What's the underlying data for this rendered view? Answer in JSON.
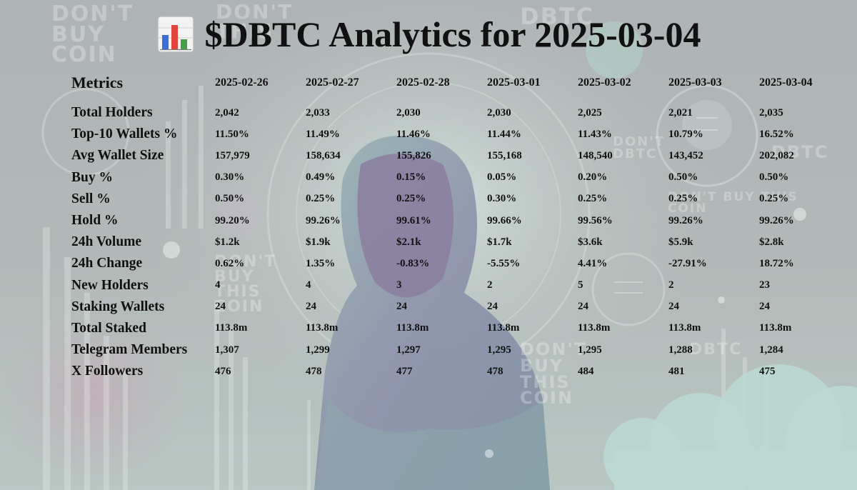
{
  "title": {
    "icon": "bar-chart-icon",
    "text": "$DBTC Analytics for 2025-03-04"
  },
  "background": {
    "watermarks": [
      "DON'T BUY COIN",
      "DON'T THIS",
      "DBTC",
      "DON'T DBTC",
      "DBTC",
      "DON'T BUY THIS COIN",
      "DON'T BUY THIS COIN",
      "DON'T BUY THIS COIN",
      "DBTC"
    ],
    "colors": {
      "base": "#a9b0b3",
      "glow": "#b9d6cf",
      "hood": "#8d8ea9"
    }
  },
  "table": {
    "header_label": "Metrics",
    "dates": [
      "2025-02-26",
      "2025-02-27",
      "2025-02-28",
      "2025-03-01",
      "2025-03-02",
      "2025-03-03",
      "2025-03-04"
    ],
    "rows": [
      {
        "label": "Total Holders",
        "values": [
          "2,042",
          "2,033",
          "2,030",
          "2,030",
          "2,025",
          "2,021",
          "2,035"
        ]
      },
      {
        "label": "Top-10 Wallets %",
        "values": [
          "11.50%",
          "11.49%",
          "11.46%",
          "11.44%",
          "11.43%",
          "10.79%",
          "16.52%"
        ]
      },
      {
        "label": "Avg Wallet Size",
        "values": [
          "157,979",
          "158,634",
          "155,826",
          "155,168",
          "148,540",
          "143,452",
          "202,082"
        ]
      },
      {
        "label": "Buy %",
        "values": [
          "0.30%",
          "0.49%",
          "0.15%",
          "0.05%",
          "0.20%",
          "0.50%",
          "0.50%"
        ]
      },
      {
        "label": "Sell %",
        "values": [
          "0.50%",
          "0.25%",
          "0.25%",
          "0.30%",
          "0.25%",
          "0.25%",
          "0.25%"
        ]
      },
      {
        "label": "Hold %",
        "values": [
          "99.20%",
          "99.26%",
          "99.61%",
          "99.66%",
          "99.56%",
          "99.26%",
          "99.26%"
        ]
      },
      {
        "label": "24h Volume",
        "values": [
          "$1.2k",
          "$1.9k",
          "$2.1k",
          "$1.7k",
          "$3.6k",
          "$5.9k",
          "$2.8k"
        ]
      },
      {
        "label": "24h Change",
        "values": [
          "0.62%",
          "1.35%",
          "-0.83%",
          "-5.55%",
          "4.41%",
          "-27.91%",
          "18.72%"
        ]
      },
      {
        "label": "New Holders",
        "values": [
          "4",
          "4",
          "3",
          "2",
          "5",
          "2",
          "23"
        ]
      },
      {
        "label": "Staking Wallets",
        "values": [
          "24",
          "24",
          "24",
          "24",
          "24",
          "24",
          "24"
        ]
      },
      {
        "label": "Total Staked",
        "values": [
          "113.8m",
          "113.8m",
          "113.8m",
          "113.8m",
          "113.8m",
          "113.8m",
          "113.8m"
        ]
      },
      {
        "label": "Telegram Members",
        "values": [
          "1,307",
          "1,299",
          "1,297",
          "1,295",
          "1,295",
          "1,288",
          "1,284"
        ]
      },
      {
        "label": "X Followers",
        "values": [
          "476",
          "478",
          "477",
          "478",
          "484",
          "481",
          "475"
        ]
      }
    ]
  }
}
